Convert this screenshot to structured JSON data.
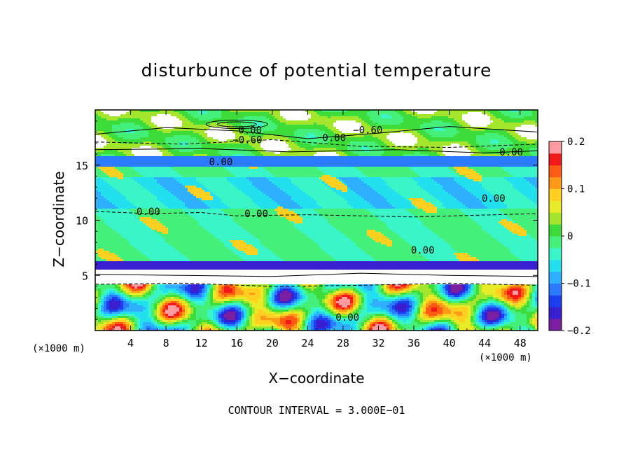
{
  "chart_data": {
    "type": "heatmap",
    "title": "disturbunce of potential temperature",
    "xlabel": "X−coordinate",
    "ylabel": "Z−coordinate",
    "x_unit": "(×1000 m)",
    "z_unit": "(×1000 m)",
    "footer": "CONTOUR INTERVAL = 3.000E−01",
    "xlim": [
      0,
      50
    ],
    "ylim": [
      0,
      20
    ],
    "x_ticks": [
      4,
      8,
      12,
      16,
      20,
      24,
      28,
      32,
      36,
      40,
      44,
      48
    ],
    "y_ticks": [
      5,
      10,
      15
    ],
    "colorbar": {
      "range": [
        -0.2,
        0.2
      ],
      "tick_values": [
        0.2,
        0.1,
        0,
        -0.1,
        -0.2
      ],
      "tick_labels": [
        "0.2",
        "0.1",
        "0",
        "−0.1",
        "−0.2"
      ],
      "colors": [
        "#7a1fa2",
        "#3a1fd0",
        "#1a3ff0",
        "#2a7bff",
        "#2fb0ff",
        "#22e0ee",
        "#3af5c8",
        "#44f07a",
        "#3edc3a",
        "#a4e62c",
        "#e8ec28",
        "#ffd020",
        "#ff9a18",
        "#ff5a14",
        "#f21818",
        "#ff9aa0"
      ]
    },
    "contour_labels": [
      {
        "text": "0.00",
        "x": 17.5,
        "z": 18.2
      },
      {
        "text": "0.00",
        "x": 27.0,
        "z": 17.5
      },
      {
        "text": "−0.60",
        "x": 30.8,
        "z": 18.2
      },
      {
        "text": "−0.60",
        "x": 17.2,
        "z": 17.3
      },
      {
        "text": "0.00",
        "x": 47.0,
        "z": 16.2
      },
      {
        "text": "0.00",
        "x": 14.2,
        "z": 15.3
      },
      {
        "text": "0.00",
        "x": 6.0,
        "z": 10.8
      },
      {
        "text": "0.00",
        "x": 18.2,
        "z": 10.6
      },
      {
        "text": "0.00",
        "x": 45.0,
        "z": 12.0
      },
      {
        "text": "0.00",
        "x": 37.0,
        "z": 7.3
      },
      {
        "text": "0.00",
        "x": 28.5,
        "z": 1.2
      }
    ]
  }
}
